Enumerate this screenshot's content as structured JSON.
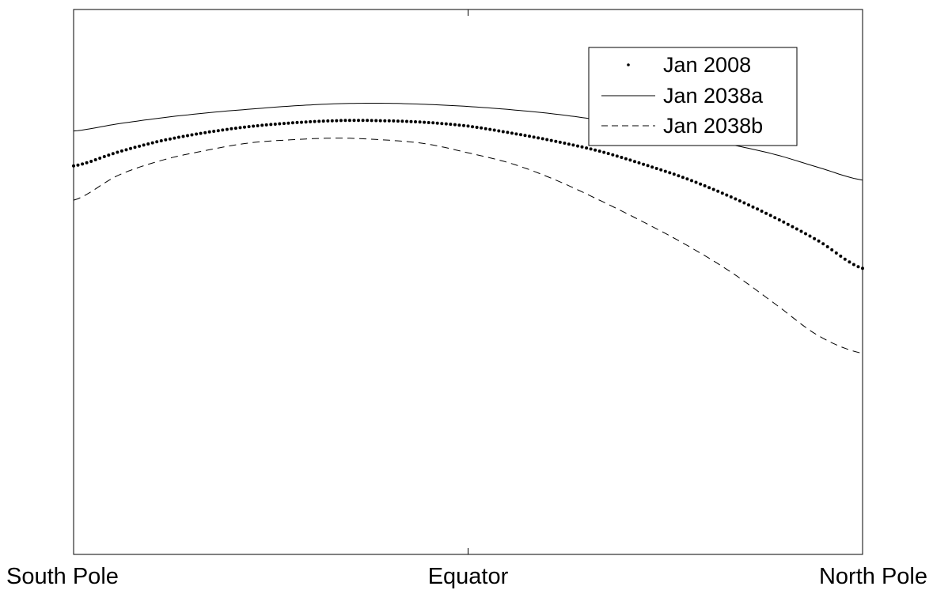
{
  "chart_data": {
    "type": "line",
    "x": [
      -90,
      -80,
      -70,
      -60,
      -50,
      -40,
      -30,
      -20,
      -10,
      0,
      10,
      20,
      30,
      40,
      50,
      60,
      70,
      80,
      90
    ],
    "xlim": [
      -90,
      90
    ],
    "ylim": [
      0,
      100
    ],
    "x_ticks": [
      {
        "value": -90,
        "label": "South Pole"
      },
      {
        "value": 0,
        "label": "Equator"
      },
      {
        "value": 90,
        "label": "North Pole"
      }
    ],
    "xlabel": "",
    "ylabel": "",
    "title": "",
    "grid": false,
    "legend_position": "top-right",
    "series": [
      {
        "name": "Jan 2008",
        "style": "dotted-markers",
        "values": [
          71.3,
          73.8,
          75.9,
          77.4,
          78.5,
          79.2,
          79.6,
          79.6,
          79.3,
          78.6,
          77.3,
          75.8,
          74.0,
          71.6,
          68.9,
          65.6,
          61.8,
          57.5,
          52.5
        ]
      },
      {
        "name": "Jan 2038a",
        "style": "solid",
        "values": [
          77.7,
          79.0,
          80.1,
          81.0,
          81.7,
          82.3,
          82.7,
          82.8,
          82.6,
          82.2,
          81.6,
          80.8,
          79.7,
          78.4,
          76.8,
          75.2,
          73.4,
          71.0,
          68.7
        ]
      },
      {
        "name": "Jan 2038b",
        "style": "dashed",
        "values": [
          65.0,
          69.5,
          72.3,
          74.1,
          75.5,
          76.1,
          76.4,
          76.1,
          75.4,
          73.7,
          71.7,
          68.7,
          65.0,
          61.0,
          56.7,
          51.8,
          46.0,
          40.1,
          36.9
        ]
      }
    ]
  },
  "colors": {
    "axis": "#000000",
    "series": "#000000",
    "background": "#ffffff"
  }
}
